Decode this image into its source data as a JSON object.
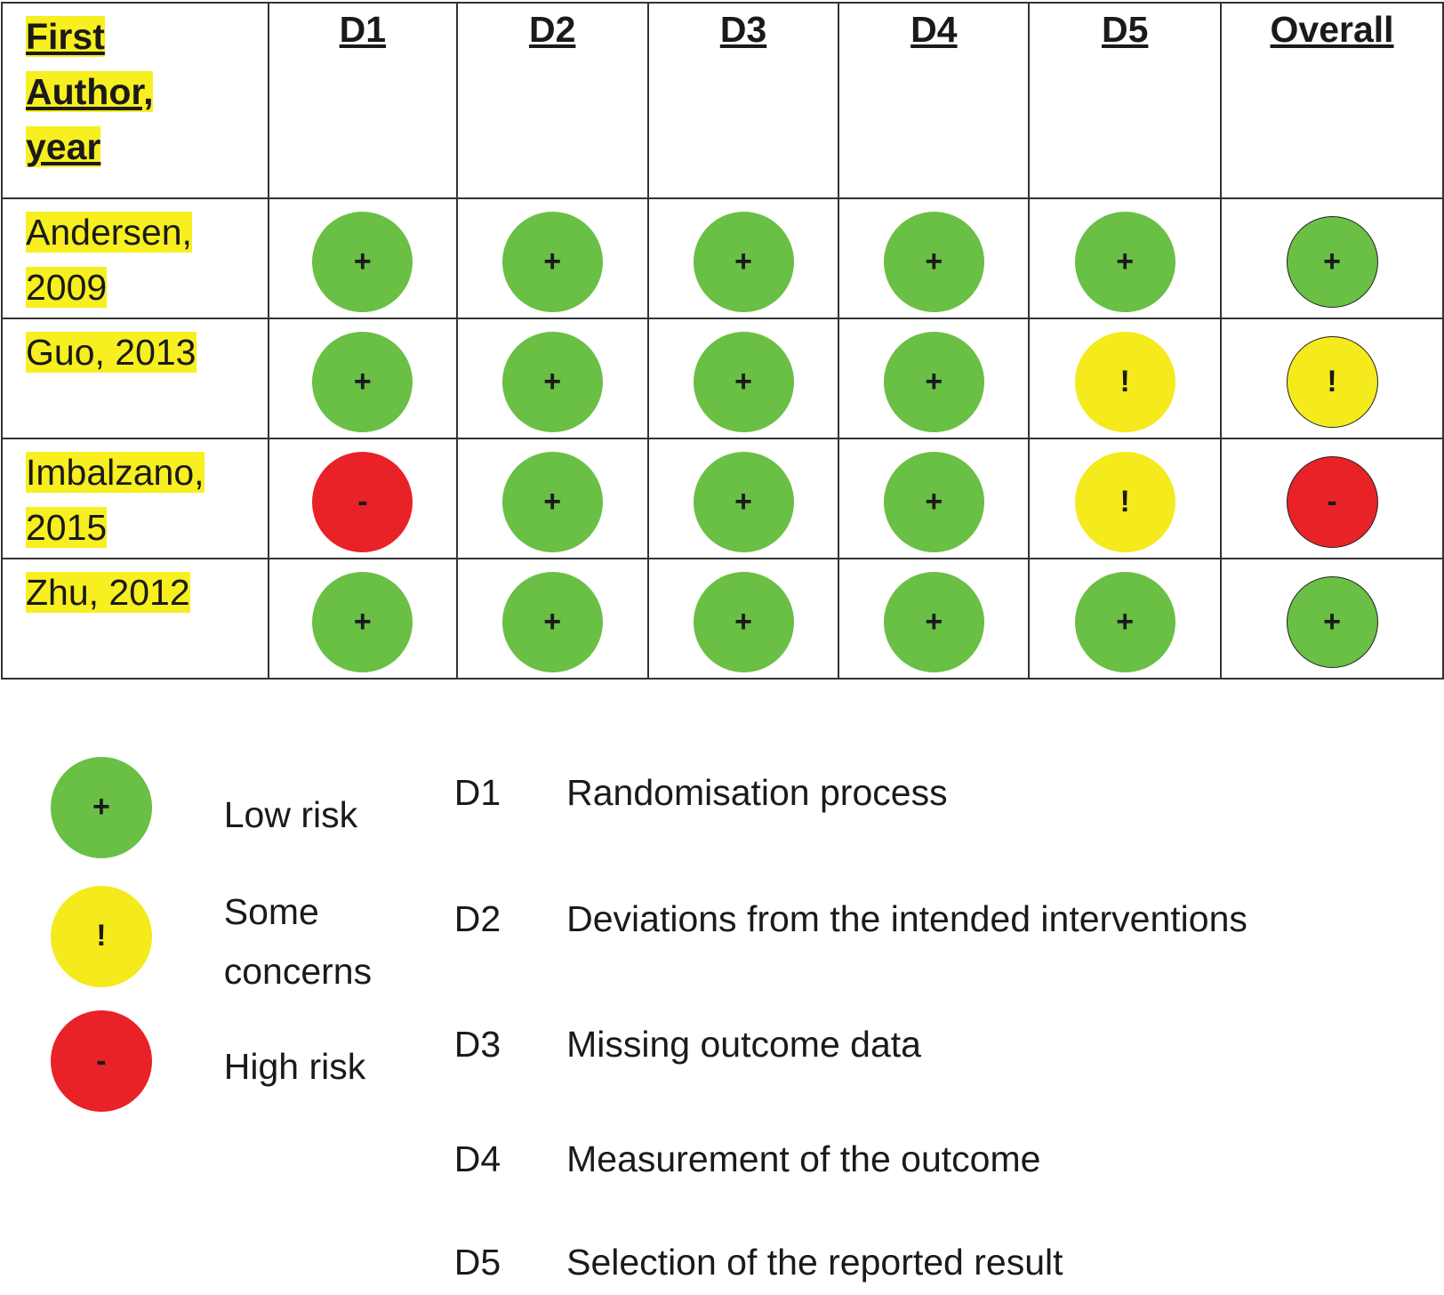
{
  "table": {
    "header": [
      "First Author, year",
      "D1",
      "D2",
      "D3",
      "D4",
      "D5",
      "Overall"
    ],
    "rows": [
      [
        "Andersen, 2009",
        "+",
        "+",
        "+",
        "+",
        "+",
        "+"
      ],
      [
        "Guo, 2013",
        "+",
        "+",
        "+",
        "+",
        "!",
        "!"
      ],
      [
        "Imbalzano, 2015",
        "-",
        "+",
        "+",
        "+",
        "!",
        "-"
      ],
      [
        "Zhu, 2012",
        "+",
        "+",
        "+",
        "+",
        "+",
        "+"
      ]
    ]
  },
  "legend": {
    "items": [
      {
        "symbol": "+",
        "label": "Low risk",
        "color": "#6abf45"
      },
      {
        "symbol": "!",
        "label": "Some concerns",
        "color": "#f4ea1c"
      },
      {
        "symbol": "-",
        "label": "High risk",
        "color": "#e92228"
      }
    ],
    "domains": [
      {
        "code": "D1",
        "label": "Randomisation process"
      },
      {
        "code": "D2",
        "label": "Deviations from the intended interventions"
      },
      {
        "code": "D3",
        "label": "Missing outcome data"
      },
      {
        "code": "D4",
        "label": "Measurement of the outcome"
      },
      {
        "code": "D5",
        "label": "Selection of the reported result"
      }
    ]
  }
}
